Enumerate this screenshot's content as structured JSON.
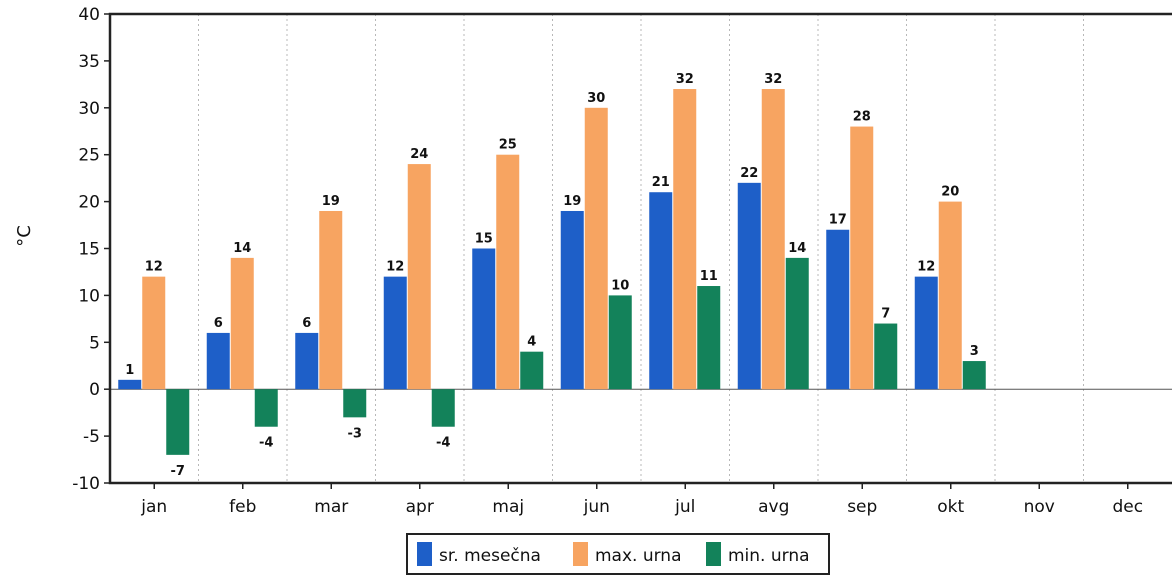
{
  "chart_data": {
    "type": "bar",
    "title": "",
    "xlabel": "",
    "ylabel": "°C",
    "ylim": [
      -10,
      40
    ],
    "yticks": [
      -10,
      -5,
      0,
      5,
      10,
      15,
      20,
      25,
      30,
      35,
      40
    ],
    "grid": "vertical dotted",
    "legend_position": "bottom-center",
    "categories": [
      "jan",
      "feb",
      "mar",
      "apr",
      "maj",
      "jun",
      "jul",
      "avg",
      "sep",
      "okt",
      "nov",
      "dec"
    ],
    "series": [
      {
        "name": "sr. mesečna",
        "color": "#1e5fc8",
        "values": [
          1,
          6,
          6,
          12,
          15,
          19,
          21,
          22,
          17,
          12,
          null,
          null
        ]
      },
      {
        "name": "max. urna",
        "color": "#f7a461",
        "values": [
          12,
          14,
          19,
          24,
          25,
          30,
          32,
          32,
          28,
          20,
          null,
          null
        ]
      },
      {
        "name": "min. urna",
        "color": "#13825a",
        "values": [
          -7,
          -4,
          -3,
          -4,
          4,
          10,
          11,
          14,
          7,
          3,
          null,
          null
        ]
      }
    ]
  }
}
